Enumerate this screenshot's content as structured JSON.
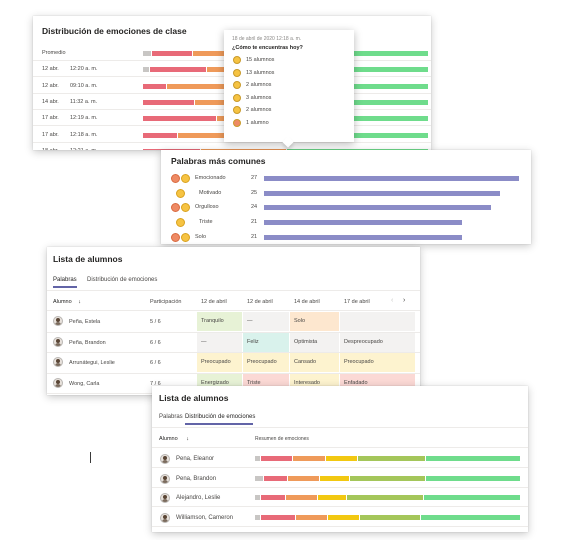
{
  "colors": {
    "gray": "#c8c6c4",
    "red": "#e86a78",
    "orange": "#ef9a5a",
    "yellow": "#f2c811",
    "lime": "#a4c65a",
    "green": "#6fdc8c",
    "bar_purple": "#8b8cc7",
    "cell_green": "#e7f2d6",
    "cell_teal": "#d9f2ec",
    "cell_yellow": "#fdf3cf",
    "cell_orange": "#fde7cf",
    "cell_red": "#fbd9d5",
    "cell_gray": "#f3f2f1"
  },
  "panel1": {
    "title": "Distribución de emociones de clase",
    "rows": [
      {
        "date": "Promedio",
        "time": "",
        "dist": [
          3,
          14,
          18,
          12,
          0,
          53
        ]
      },
      {
        "date": "12 abr.",
        "time": "12:20 a. m.",
        "dist": [
          2,
          20,
          18,
          18,
          0,
          42
        ]
      },
      {
        "date": "12 abr.",
        "time": "09:10 a. m.",
        "dist": [
          0,
          8,
          22,
          30,
          0,
          40
        ]
      },
      {
        "date": "14 abr.",
        "time": "11:32 a. m.",
        "dist": [
          0,
          18,
          16,
          20,
          0,
          46
        ]
      },
      {
        "date": "17 abr.",
        "time": "12:19 a. m.",
        "dist": [
          0,
          26,
          14,
          14,
          0,
          46
        ]
      },
      {
        "date": "17 abr.",
        "time": "12:18 a. m.",
        "dist": [
          0,
          12,
          18,
          20,
          22,
          28
        ]
      },
      {
        "date": "18 abr.",
        "time": "12:21 a. m.",
        "dist": [
          0,
          20,
          30,
          0,
          0,
          50
        ]
      }
    ]
  },
  "tooltip": {
    "timestamp": "18 de abril de 2020 12:18 a. m.",
    "question": "¿Cómo te encuentras hoy?",
    "items": [
      "15 alumnos",
      "13 alumnos",
      "2 alumnos",
      "3 alumnos",
      "2 alumnos",
      "1 alumno"
    ]
  },
  "panel2": {
    "title": "Palabras más comunes",
    "max": 27,
    "words": [
      {
        "label": "Emocionado",
        "count": 27,
        "emoji": [
          "red",
          "yellow"
        ]
      },
      {
        "label": "Motivado",
        "count": 25,
        "emoji": [
          "yellow"
        ]
      },
      {
        "label": "Orgulloso",
        "count": 24,
        "emoji": [
          "red",
          "yellow"
        ]
      },
      {
        "label": "Triste",
        "count": 21,
        "emoji": [
          "yellow"
        ]
      },
      {
        "label": "Solo",
        "count": 21,
        "emoji": [
          "red",
          "yellow"
        ]
      }
    ]
  },
  "panel3": {
    "title": "Lista de alumnos",
    "tabs": [
      "Palabras",
      "Distribución de emociones"
    ],
    "headers": [
      "Alumno",
      "Participación",
      "12 de abril",
      "12 de abril",
      "14 de abril",
      "17 de abril"
    ],
    "students": [
      {
        "name": "Peña, Estela",
        "part": "5 / 6",
        "cells": [
          [
            "Tranquilo",
            "cell_green"
          ],
          [
            "—",
            "cell_gray"
          ],
          [
            "Solo",
            "cell_orange"
          ],
          [
            "",
            "cell_gray"
          ]
        ]
      },
      {
        "name": "Peña, Brandon",
        "part": "6 / 6",
        "cells": [
          [
            "—",
            "cell_gray"
          ],
          [
            "Feliz",
            "cell_teal"
          ],
          [
            "Optimista",
            "cell_gray"
          ],
          [
            "Despreocupado",
            "cell_gray"
          ]
        ]
      },
      {
        "name": "Arrunátegui, Leslie",
        "part": "6 / 6",
        "cells": [
          [
            "Preocupado",
            "cell_yellow"
          ],
          [
            "Preocupado",
            "cell_yellow"
          ],
          [
            "Cansado",
            "cell_yellow"
          ],
          [
            "Preocupado",
            "cell_yellow"
          ]
        ]
      },
      {
        "name": "Wong, Carla",
        "part": "7 / 6",
        "cells": [
          [
            "Energizado",
            "cell_green"
          ],
          [
            "Triste",
            "cell_red"
          ],
          [
            "Interesado",
            "cell_yellow"
          ],
          [
            "Enfadado",
            "cell_red"
          ]
        ]
      }
    ]
  },
  "panel4": {
    "title": "Lista de alumnos",
    "tabs": [
      "Palabras",
      "Distribución de emociones"
    ],
    "col_student": "Alumno",
    "col_summary": "Resumen de emociones",
    "students": [
      {
        "name": "Pena, Eleanor",
        "dist": [
          2,
          12,
          12,
          12,
          26,
          36
        ]
      },
      {
        "name": "Pena, Brandon",
        "dist": [
          3,
          9,
          12,
          11,
          29,
          36
        ]
      },
      {
        "name": "Alejandro, Leslie",
        "dist": [
          2,
          9,
          12,
          11,
          29,
          37
        ]
      },
      {
        "name": "Williamson, Cameron",
        "dist": [
          2,
          13,
          12,
          12,
          23,
          38
        ]
      }
    ]
  }
}
